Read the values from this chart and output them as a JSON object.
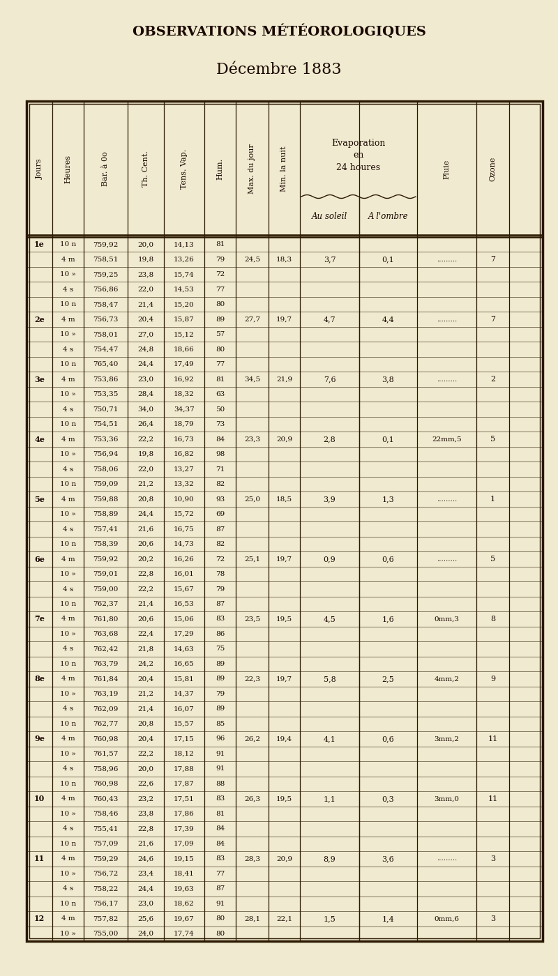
{
  "title": "OBSERVATIONS MÉTÉOROLOGIQUES",
  "subtitle": "Décembre 1883",
  "bg_color": "#f0ead0",
  "text_color": "#1a0800",
  "rows": [
    [
      "1e",
      "10 n",
      "759,92",
      "20,0",
      "14,13",
      "81",
      "",
      "",
      "",
      "",
      "",
      ""
    ],
    [
      "",
      "4 m",
      "758,51",
      "19,8",
      "13,26",
      "79",
      "24,5",
      "18,3",
      "3,7",
      "0,1",
      ".........",
      "7"
    ],
    [
      "",
      "10 »",
      "759,25",
      "23,8",
      "15,74",
      "72",
      "",
      "",
      "",
      "",
      "",
      ""
    ],
    [
      "",
      "4 s",
      "756,86",
      "22,0",
      "14,53",
      "77",
      "",
      "",
      "",
      "",
      "",
      ""
    ],
    [
      "",
      "10 n",
      "758,47",
      "21,4",
      "15,20",
      "80",
      "",
      "",
      "",
      "",
      "",
      ""
    ],
    [
      "2e",
      "4 m",
      "756,73",
      "20,4",
      "15,87",
      "89",
      "27,7",
      "19,7",
      "4,7",
      "4,4",
      ".........",
      "7"
    ],
    [
      "",
      "10 »",
      "758,01",
      "27,0",
      "15,12",
      "57",
      "",
      "",
      "",
      "",
      "",
      ""
    ],
    [
      "",
      "4 s",
      "754,47",
      "24,8",
      "18,66",
      "80",
      "",
      "",
      "",
      "",
      "",
      ""
    ],
    [
      "",
      "10 n",
      "765,40",
      "24,4",
      "17,49",
      "77",
      "",
      "",
      "",
      "",
      "",
      ""
    ],
    [
      "3e",
      "4 m",
      "753,86",
      "23,0",
      "16,92",
      "81",
      "34,5",
      "21,9",
      "7,6",
      "3,8",
      ".........",
      "2"
    ],
    [
      "",
      "10 »",
      "753,35",
      "28,4",
      "18,32",
      "63",
      "",
      "",
      "",
      "",
      "",
      ""
    ],
    [
      "",
      "4 s",
      "750,71",
      "34,0",
      "34,37",
      "50",
      "",
      "",
      "",
      "",
      "",
      ""
    ],
    [
      "",
      "10 n",
      "754,51",
      "26,4",
      "18,79",
      "73",
      "",
      "",
      "",
      "",
      "",
      ""
    ],
    [
      "4e",
      "4 m",
      "753,36",
      "22,2",
      "16,73",
      "84",
      "23,3",
      "20,9",
      "2,8",
      "0,1",
      "22mm,5",
      "5"
    ],
    [
      "",
      "10 »",
      "756,94",
      "19,8",
      "16,82",
      "98",
      "",
      "",
      "",
      "",
      "",
      ""
    ],
    [
      "",
      "4 s",
      "758,06",
      "22,0",
      "13,27",
      "71",
      "",
      "",
      "",
      "",
      "",
      ""
    ],
    [
      "",
      "10 n",
      "759,09",
      "21,2",
      "13,32",
      "82",
      "",
      "",
      "",
      "",
      "",
      ""
    ],
    [
      "5e",
      "4 m",
      "759,88",
      "20,8",
      "10,90",
      "93",
      "25,0",
      "18,5",
      "3,9",
      "1,3",
      ".........",
      "1"
    ],
    [
      "",
      "10 »",
      "758,89",
      "24,4",
      "15,72",
      "69",
      "",
      "",
      "",
      "",
      "",
      ""
    ],
    [
      "",
      "4 s",
      "757,41",
      "21,6",
      "16,75",
      "87",
      "",
      "",
      "",
      "",
      "",
      ""
    ],
    [
      "",
      "10 n",
      "758,39",
      "20,6",
      "14,73",
      "82",
      "",
      "",
      "",
      "",
      "",
      ""
    ],
    [
      "6e",
      "4 m",
      "759,92",
      "20,2",
      "16,26",
      "72",
      "25,1",
      "19,7",
      "0,9",
      "0,6",
      ".........",
      "5"
    ],
    [
      "",
      "10 »",
      "759,01",
      "22,8",
      "16,01",
      "78",
      "",
      "",
      "",
      "",
      "",
      ""
    ],
    [
      "",
      "4 s",
      "759,00",
      "22,2",
      "15,67",
      "79",
      "",
      "",
      "",
      "",
      "",
      ""
    ],
    [
      "",
      "10 n",
      "762,37",
      "21,4",
      "16,53",
      "87",
      "",
      "",
      "",
      "",
      "",
      ""
    ],
    [
      "7e",
      "4 m",
      "761,80",
      "20,6",
      "15,06",
      "83",
      "23,5",
      "19,5",
      "4,5",
      "1,6",
      "0mm,3",
      "8"
    ],
    [
      "",
      "10 »",
      "763,68",
      "22,4",
      "17,29",
      "86",
      "",
      "",
      "",
      "",
      "",
      ""
    ],
    [
      "",
      "4 s",
      "762,42",
      "21,8",
      "14,63",
      "75",
      "",
      "",
      "",
      "",
      "",
      ""
    ],
    [
      "",
      "10 n",
      "763,79",
      "24,2",
      "16,65",
      "89",
      "",
      "",
      "",
      "",
      "",
      ""
    ],
    [
      "8e",
      "4 m",
      "761,84",
      "20,4",
      "15,81",
      "89",
      "22,3",
      "19,7",
      "5,8",
      "2,5",
      "4mm,2",
      "9"
    ],
    [
      "",
      "10 »",
      "763,19",
      "21,2",
      "14,37",
      "79",
      "",
      "",
      "",
      "",
      "",
      ""
    ],
    [
      "",
      "4 s",
      "762,09",
      "21,4",
      "16,07",
      "89",
      "",
      "",
      "",
      "",
      "",
      ""
    ],
    [
      "",
      "10 n",
      "762,77",
      "20,8",
      "15,57",
      "85",
      "",
      "",
      "",
      "",
      "",
      ""
    ],
    [
      "9e",
      "4 m",
      "760,98",
      "20,4",
      "17,15",
      "96",
      "26,2",
      "19,4",
      "4,1",
      "0,6",
      "3mm,2",
      "11"
    ],
    [
      "",
      "10 »",
      "761,57",
      "22,2",
      "18,12",
      "91",
      "",
      "",
      "",
      "",
      "",
      ""
    ],
    [
      "",
      "4 s",
      "758,96",
      "20,0",
      "17,88",
      "91",
      "",
      "",
      "",
      "",
      "",
      ""
    ],
    [
      "",
      "10 n",
      "760,98",
      "22,6",
      "17,87",
      "88",
      "",
      "",
      "",
      "",
      "",
      ""
    ],
    [
      "10",
      "4 m",
      "760,43",
      "23,2",
      "17,51",
      "83",
      "26,3",
      "19,5",
      "1,1",
      "0,3",
      "3mm,0",
      "11"
    ],
    [
      "",
      "10 »",
      "758,46",
      "23,8",
      "17,86",
      "81",
      "",
      "",
      "",
      "",
      "",
      ""
    ],
    [
      "",
      "4 s",
      "755,41",
      "22,8",
      "17,39",
      "84",
      "",
      "",
      "",
      "",
      "",
      ""
    ],
    [
      "",
      "10 n",
      "757,09",
      "21,6",
      "17,09",
      "84",
      "",
      "",
      "",
      "",
      "",
      ""
    ],
    [
      "11",
      "4 m",
      "759,29",
      "24,6",
      "19,15",
      "83",
      "28,3",
      "20,9",
      "8,9",
      "3,6",
      ".........",
      "3"
    ],
    [
      "",
      "10 »",
      "756,72",
      "23,4",
      "18,41",
      "77",
      "",
      "",
      "",
      "",
      "",
      ""
    ],
    [
      "",
      "4 s",
      "758,22",
      "24,4",
      "19,63",
      "87",
      "",
      "",
      "",
      "",
      "",
      ""
    ],
    [
      "",
      "10 n",
      "756,17",
      "23,0",
      "18,62",
      "91",
      "",
      "",
      "",
      "",
      "",
      ""
    ],
    [
      "12",
      "4 m",
      "757,82",
      "25,6",
      "19,67",
      "80",
      "28,1",
      "22,1",
      "1,5",
      "1,4",
      "0mm,6",
      "3"
    ],
    [
      "",
      "10 »",
      "755,00",
      "24,0",
      "17,74",
      "80",
      "",
      "",
      "",
      "",
      "",
      ""
    ]
  ]
}
